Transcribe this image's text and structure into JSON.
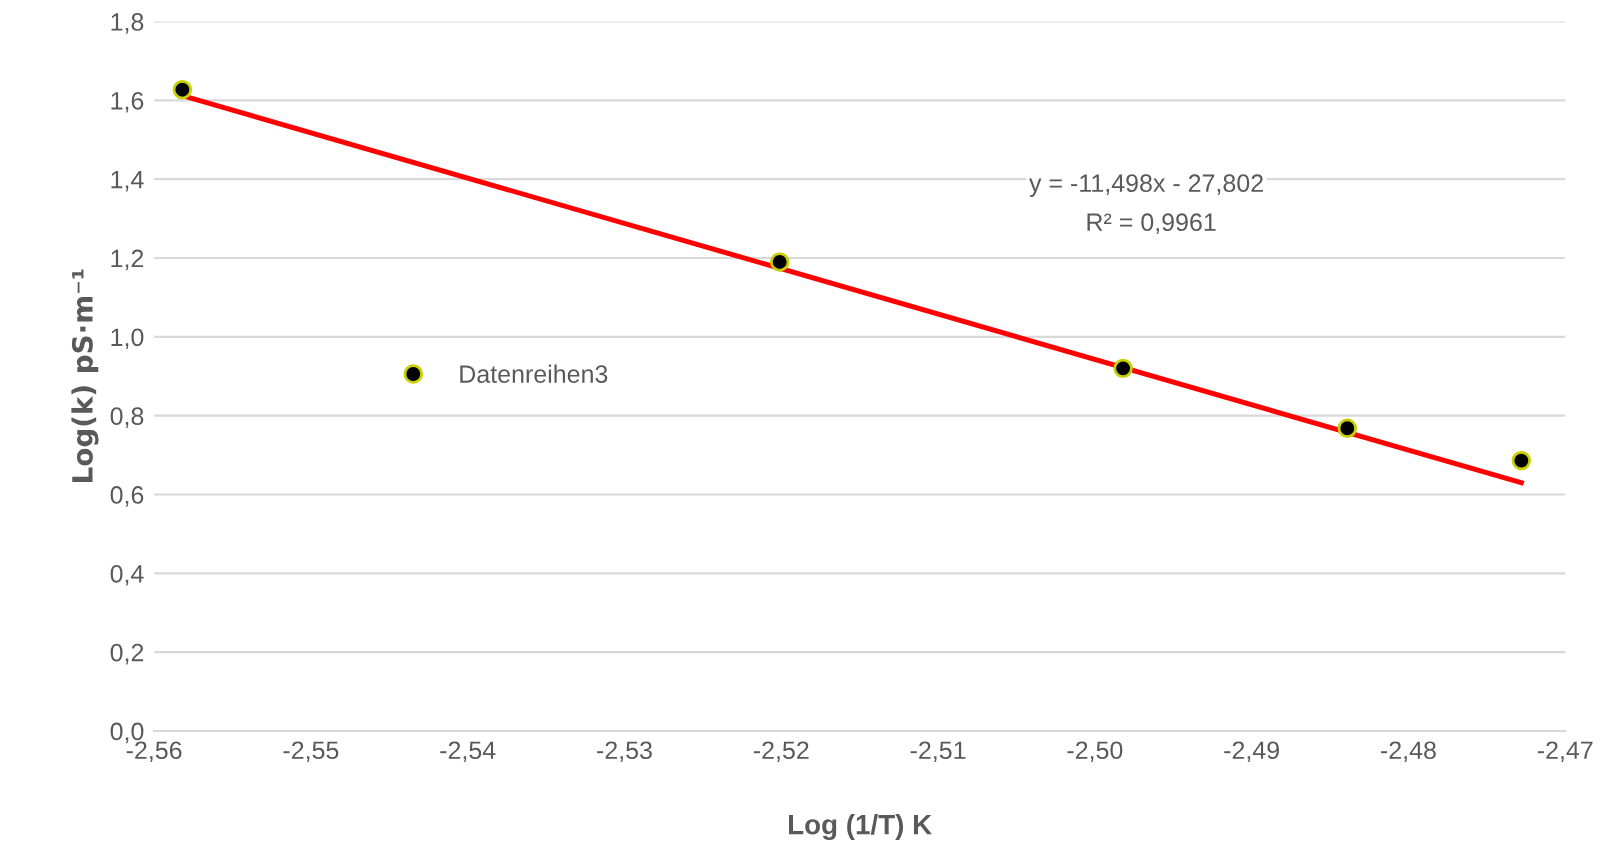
{
  "chart_data": {
    "type": "scatter",
    "xlabel": "Log (1/T) K",
    "ylabel": "Log(k) pS·m⁻¹",
    "xlim": [
      -2.56,
      -2.47
    ],
    "ylim": [
      0,
      1.8
    ],
    "xticks": [
      {
        "value": -2.56,
        "label": "-2,56"
      },
      {
        "value": -2.55,
        "label": "-2,55"
      },
      {
        "value": -2.54,
        "label": "-2,54"
      },
      {
        "value": -2.53,
        "label": "-2,53"
      },
      {
        "value": -2.52,
        "label": "-2,52"
      },
      {
        "value": -2.51,
        "label": "-2,51"
      },
      {
        "value": -2.5,
        "label": "-2,50"
      },
      {
        "value": -2.49,
        "label": "-2,49"
      },
      {
        "value": -2.48,
        "label": "-2,48"
      },
      {
        "value": -2.47,
        "label": "-2,47"
      }
    ],
    "yticks": [
      {
        "value": 0,
        "label": "0,0"
      },
      {
        "value": 0.2,
        "label": "0,2"
      },
      {
        "value": 0.4,
        "label": "0,4"
      },
      {
        "value": 0.6,
        "label": "0,6"
      },
      {
        "value": 0.8,
        "label": "0,8"
      },
      {
        "value": 1.0,
        "label": "1,0"
      },
      {
        "value": 1.2,
        "label": "1,2"
      },
      {
        "value": 1.4,
        "label": "1,4"
      },
      {
        "value": 1.6,
        "label": "1,6"
      },
      {
        "value": 1.8,
        "label": "1,8"
      }
    ],
    "grid": "y",
    "legend": "left",
    "series": [
      {
        "name": "Datenreihen3",
        "marker": "circle",
        "color": "#000000",
        "x": [
          -2.5582,
          -2.5201,
          -2.4982,
          -2.4839,
          -2.4728
        ],
        "values": [
          1.627,
          1.19,
          0.92,
          0.768,
          0.686
        ]
      },
      {
        "type": "line",
        "color": "#ff0000",
        "x": [
          -2.5582,
          -2.4728
        ],
        "values": [
          1.612,
          0.63
        ]
      }
    ],
    "annotations": [
      "y = -11,498x - 27,802",
      "R² = 0,9961"
    ]
  }
}
